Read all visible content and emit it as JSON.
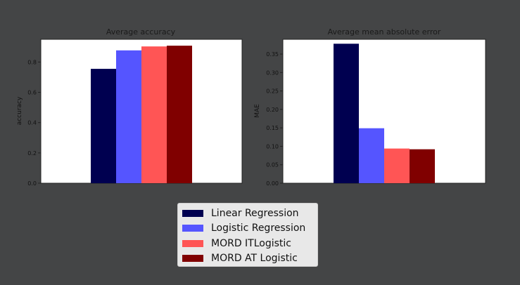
{
  "chart_data": [
    {
      "type": "bar",
      "title": "Average accuracy",
      "xlabel": "",
      "ylabel": "accuracy",
      "ylim": [
        0,
        0.95
      ],
      "yticks": [
        "0.0",
        "0.2",
        "0.4",
        "0.6",
        "0.8"
      ],
      "series": [
        {
          "name": "Linear Regression",
          "values": [
            0.755
          ],
          "color": "#000050"
        },
        {
          "name": "Logistic Regression",
          "values": [
            0.877
          ],
          "color": "#5555ff"
        },
        {
          "name": "MORD ITLogistic",
          "values": [
            0.903
          ],
          "color": "#ff5555"
        },
        {
          "name": "MORD AT Logistic",
          "values": [
            0.908
          ],
          "color": "#800000"
        }
      ],
      "grid": false
    },
    {
      "type": "bar",
      "title": "Average mean absolute error",
      "xlabel": "",
      "ylabel": "MAE",
      "ylim": [
        0,
        0.39
      ],
      "yticks": [
        "0.00",
        "0.05",
        "0.10",
        "0.15",
        "0.20",
        "0.25",
        "0.30",
        "0.35"
      ],
      "series": [
        {
          "name": "Linear Regression",
          "values": [
            0.378
          ],
          "color": "#000050"
        },
        {
          "name": "Logistic Regression",
          "values": [
            0.149
          ],
          "color": "#5555ff"
        },
        {
          "name": "MORD ITLogistic",
          "values": [
            0.094
          ],
          "color": "#ff5555"
        },
        {
          "name": "MORD AT Logistic",
          "values": [
            0.092
          ],
          "color": "#800000"
        }
      ],
      "grid": false
    }
  ],
  "legend": {
    "placement": "bottom-center",
    "items": [
      {
        "label": "Linear Regression",
        "color": "#000050"
      },
      {
        "label": "Logistic Regression",
        "color": "#5555ff"
      },
      {
        "label": "MORD ITLogistic",
        "color": "#ff5555"
      },
      {
        "label": "MORD AT Logistic",
        "color": "#800000"
      }
    ]
  }
}
